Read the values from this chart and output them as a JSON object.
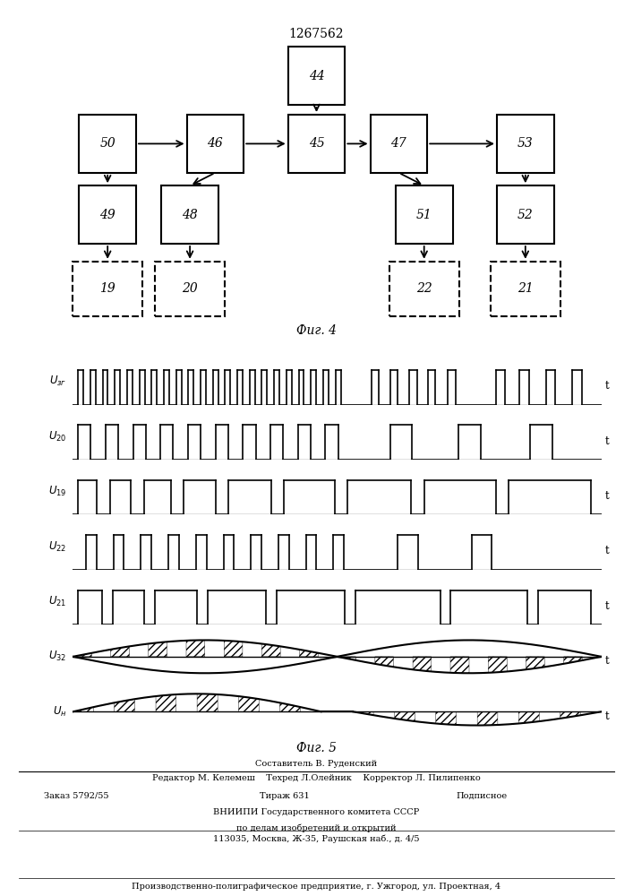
{
  "title": "1267562",
  "fig4_label": "Фиг. 4",
  "fig5_label": "Фиг. 5",
  "footer_line1": "Составитель В. Руденский",
  "footer_line2": "Редактор М. Келемеш    Техред Л.Олейник    Корректор Л. Пилипенко",
  "footer_line3a": "Заказ 5792/55",
  "footer_line3b": "Тираж 631",
  "footer_line3c": "Подписное",
  "footer_line4": "ВНИИПИ Государственного комитета СССР",
  "footer_line5": "по делам изобретений и открытий",
  "footer_line6": "113035, Москва, Ж-35, Раушская наб., д. 4/5",
  "footer_line7": "Производственно-полиграфическое предприятие, г. Ужгород, ул. Проектная, 4",
  "wf_labels": [
    "U_зг",
    "U_20",
    "U_19",
    "U_22",
    "U_21",
    "U_32",
    "U_н"
  ]
}
